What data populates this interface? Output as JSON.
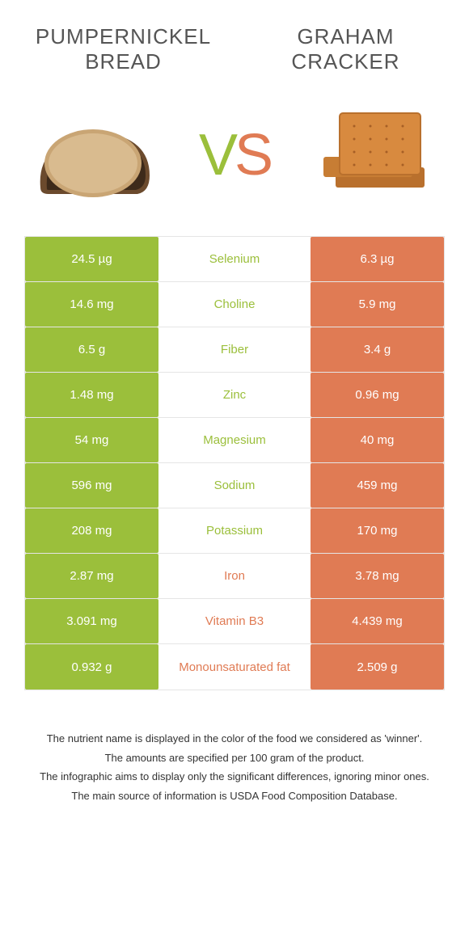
{
  "left_title": "Pumpernickel bread",
  "right_title": "Graham cracker",
  "vs_v": "V",
  "vs_s": "S",
  "colors": {
    "left": "#9bbf3b",
    "right": "#e07b54",
    "border": "#e5e5e5",
    "text": "#333333",
    "title": "#555555"
  },
  "rows": [
    {
      "left": "24.5 µg",
      "mid": "Selenium",
      "right": "6.3 µg",
      "winner": "left"
    },
    {
      "left": "14.6 mg",
      "mid": "Choline",
      "right": "5.9 mg",
      "winner": "left"
    },
    {
      "left": "6.5 g",
      "mid": "Fiber",
      "right": "3.4 g",
      "winner": "left"
    },
    {
      "left": "1.48 mg",
      "mid": "Zinc",
      "right": "0.96 mg",
      "winner": "left"
    },
    {
      "left": "54 mg",
      "mid": "Magnesium",
      "right": "40 mg",
      "winner": "left"
    },
    {
      "left": "596 mg",
      "mid": "Sodium",
      "right": "459 mg",
      "winner": "left"
    },
    {
      "left": "208 mg",
      "mid": "Potassium",
      "right": "170 mg",
      "winner": "left"
    },
    {
      "left": "2.87 mg",
      "mid": "Iron",
      "right": "3.78 mg",
      "winner": "right"
    },
    {
      "left": "3.091 mg",
      "mid": "Vitamin B3",
      "right": "4.439 mg",
      "winner": "right"
    },
    {
      "left": "0.932 g",
      "mid": "Monounsaturated fat",
      "right": "2.509 g",
      "winner": "right"
    }
  ],
  "footnotes": [
    "The nutrient name is displayed in the color of the food we considered as 'winner'.",
    "The amounts are specified per 100 gram of the product.",
    "The infographic aims to display only the significant differences, ignoring minor ones.",
    "The main source of information is USDA Food Composition Database."
  ]
}
